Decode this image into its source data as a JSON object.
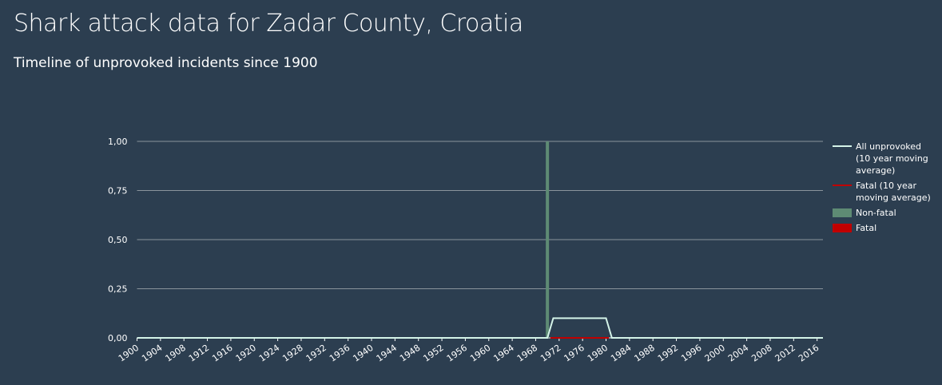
{
  "chart_data": {
    "type": "combo",
    "title": "Shark attack data for Zadar County, Croatia",
    "subtitle": "Timeline of unprovoked incidents since 1900",
    "xlim": [
      1900,
      2017
    ],
    "xticks": [
      1900,
      1904,
      1908,
      1912,
      1916,
      1920,
      1924,
      1928,
      1932,
      1936,
      1940,
      1944,
      1948,
      1952,
      1956,
      1960,
      1964,
      1968,
      1972,
      1976,
      1980,
      1984,
      1988,
      1992,
      1996,
      2000,
      2004,
      2008,
      2012,
      2016
    ],
    "ylim": [
      0,
      1
    ],
    "yticks": [
      {
        "value": 0,
        "label": "0,00"
      },
      {
        "value": 0.25,
        "label": "0,25"
      },
      {
        "value": 0.5,
        "label": "0,50"
      },
      {
        "value": 0.75,
        "label": "0,75"
      },
      {
        "value": 1,
        "label": "1,00"
      }
    ],
    "grid": true,
    "series": [
      {
        "name": "All unprovoked (10 year moving average)",
        "type": "line",
        "color": "#d4f3e8",
        "x": [
          1900,
          1970,
          1971,
          1980,
          1981,
          2017
        ],
        "values": [
          0,
          0,
          0.1,
          0.1,
          0,
          0
        ]
      },
      {
        "name": "Fatal (10 year moving average)",
        "type": "line",
        "color": "#c00000",
        "x": [
          1970.5,
          1980.5
        ],
        "values": [
          0,
          0
        ]
      },
      {
        "name": "Non-fatal",
        "type": "bar",
        "color": "#5e8b74",
        "x": [
          1970
        ],
        "values": [
          1
        ]
      },
      {
        "name": "Fatal",
        "type": "bar",
        "color": "#c00000",
        "x": [],
        "values": []
      }
    ]
  }
}
